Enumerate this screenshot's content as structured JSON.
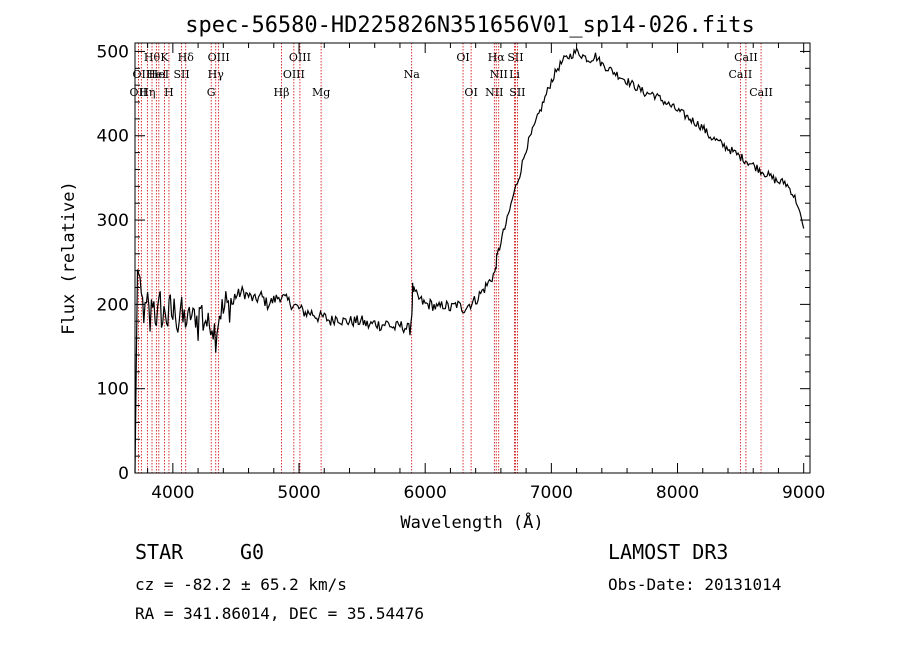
{
  "chart_data": {
    "type": "line",
    "title": "spec-56580-HD225826N351656V01_sp14-026.fits",
    "xlabel": "Wavelength (Å)",
    "ylabel": "Flux (relative)",
    "xlim": [
      3700,
      9050
    ],
    "ylim": [
      0,
      510
    ],
    "xticks": [
      4000,
      5000,
      6000,
      7000,
      8000,
      9000
    ],
    "yticks": [
      0,
      100,
      200,
      300,
      400,
      500
    ],
    "spectrum": {
      "x": [
        3700,
        3720,
        3740,
        3760,
        3780,
        3800,
        3820,
        3840,
        3860,
        3880,
        3900,
        3920,
        3940,
        3960,
        3980,
        4000,
        4020,
        4040,
        4060,
        4080,
        4100,
        4120,
        4140,
        4160,
        4180,
        4200,
        4220,
        4240,
        4260,
        4280,
        4300,
        4320,
        4340,
        4360,
        4380,
        4400,
        4420,
        4440,
        4460,
        4480,
        4500,
        4550,
        4600,
        4650,
        4700,
        4750,
        4800,
        4850,
        4900,
        4950,
        5000,
        5050,
        5100,
        5150,
        5200,
        5250,
        5300,
        5350,
        5400,
        5450,
        5500,
        5550,
        5600,
        5650,
        5700,
        5750,
        5800,
        5850,
        5880,
        5895,
        5900,
        5910,
        5930,
        5960,
        6000,
        6050,
        6100,
        6150,
        6200,
        6250,
        6300,
        6350,
        6400,
        6450,
        6500,
        6520,
        6540,
        6560,
        6563,
        6570,
        6600,
        6650,
        6700,
        6750,
        6800,
        6850,
        6900,
        6950,
        7000,
        7050,
        7100,
        7150,
        7200,
        7250,
        7300,
        7350,
        7400,
        7450,
        7500,
        7550,
        7600,
        7650,
        7700,
        7750,
        7800,
        7850,
        7900,
        7950,
        8000,
        8050,
        8100,
        8150,
        8200,
        8250,
        8300,
        8350,
        8400,
        8450,
        8500,
        8550,
        8600,
        8650,
        8700,
        8750,
        8800,
        8850,
        8900,
        8950,
        8980,
        9000
      ],
      "y": [
        0,
        250,
        210,
        200,
        185,
        200,
        175,
        210,
        190,
        185,
        200,
        180,
        195,
        180,
        195,
        185,
        200,
        175,
        195,
        180,
        185,
        175,
        190,
        180,
        190,
        175,
        200,
        180,
        185,
        170,
        185,
        175,
        165,
        185,
        195,
        190,
        200,
        195,
        205,
        200,
        210,
        215,
        210,
        205,
        210,
        200,
        205,
        210,
        205,
        200,
        195,
        190,
        190,
        185,
        185,
        180,
        185,
        180,
        180,
        180,
        180,
        175,
        178,
        175,
        178,
        172,
        175,
        172,
        170,
        190,
        220,
        215,
        210,
        205,
        200,
        200,
        195,
        200,
        195,
        200,
        195,
        200,
        205,
        215,
        225,
        230,
        235,
        240,
        250,
        255,
        275,
        300,
        330,
        355,
        385,
        405,
        425,
        445,
        465,
        480,
        490,
        495,
        500,
        495,
        490,
        495,
        485,
        480,
        475,
        470,
        465,
        460,
        455,
        450,
        450,
        445,
        440,
        435,
        430,
        425,
        420,
        415,
        410,
        400,
        395,
        390,
        385,
        380,
        375,
        370,
        365,
        360,
        355,
        350,
        345,
        345,
        335,
        320,
        300,
        290
      ]
    },
    "lines": [
      {
        "wave": 3727,
        "label": "OII",
        "row": 3
      },
      {
        "wave": 3750,
        "label": "OII",
        "row": 2
      },
      {
        "wave": 3798,
        "label": "Hη",
        "row": 3
      },
      {
        "wave": 3835,
        "label": "Hθ",
        "row": 1
      },
      {
        "wave": 3869,
        "label": "HeI",
        "row": 2
      },
      {
        "wave": 3889,
        "label": "HeI",
        "row": 2
      },
      {
        "wave": 3934,
        "label": "K",
        "row": 1
      },
      {
        "wave": 3969,
        "label": "H",
        "row": 3
      },
      {
        "wave": 4069,
        "label": "SII",
        "row": 2
      },
      {
        "wave": 4102,
        "label": "Hδ",
        "row": 1
      },
      {
        "wave": 4304,
        "label": "G",
        "row": 3
      },
      {
        "wave": 4340,
        "label": "Hγ",
        "row": 2
      },
      {
        "wave": 4363,
        "label": "OIII",
        "row": 1
      },
      {
        "wave": 4861,
        "label": "Hβ",
        "row": 3
      },
      {
        "wave": 4959,
        "label": "OIII",
        "row": 2
      },
      {
        "wave": 5007,
        "label": "OIII",
        "row": 1
      },
      {
        "wave": 5175,
        "label": "Mg",
        "row": 3
      },
      {
        "wave": 5893,
        "label": "Na",
        "row": 2
      },
      {
        "wave": 6300,
        "label": "OI",
        "row": 1
      },
      {
        "wave": 6364,
        "label": "OI",
        "row": 3
      },
      {
        "wave": 6548,
        "label": "NII",
        "row": 3
      },
      {
        "wave": 6563,
        "label": "Hα",
        "row": 1
      },
      {
        "wave": 6583,
        "label": "NII",
        "row": 2
      },
      {
        "wave": 6708,
        "label": "Li",
        "row": 2
      },
      {
        "wave": 6716,
        "label": "SII",
        "row": 1
      },
      {
        "wave": 6731,
        "label": "SII",
        "row": 3
      },
      {
        "wave": 8498,
        "label": "CaII",
        "row": 2
      },
      {
        "wave": 8542,
        "label": "CaII",
        "row": 1
      },
      {
        "wave": 8662,
        "label": "CaII",
        "row": 3
      }
    ]
  },
  "info": {
    "object_class": "STAR",
    "subclass": "G0",
    "survey": "LAMOST DR3",
    "redshift": "cz = -82.2 ± 65.2 km/s",
    "obs_date": "Obs-Date: 20131014",
    "coords": "RA = 341.86014, DEC =  35.54476"
  }
}
